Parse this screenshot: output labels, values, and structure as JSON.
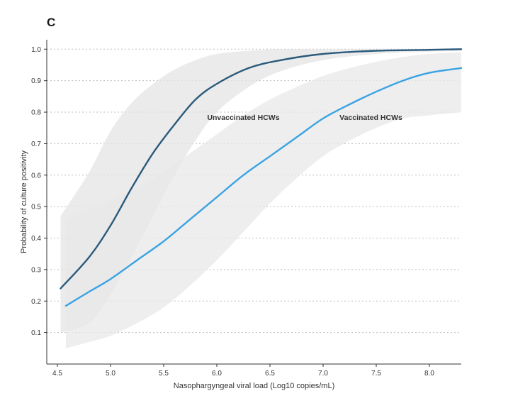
{
  "panel_label": "C",
  "chart_data": {
    "type": "line",
    "title": "",
    "xlabel": "Nasophargyngeal viral load (Log10 copies/mL)",
    "ylabel": "Probability of culture positivity",
    "xlim": [
      4.4,
      8.3
    ],
    "ylim": [
      0.0,
      1.03
    ],
    "x_ticks": [
      4.5,
      5.0,
      5.5,
      6.0,
      6.5,
      7.0,
      7.5,
      8.0
    ],
    "x_tick_labels": [
      "4.5",
      "5.0",
      "5.5",
      "6.0",
      "6.5",
      "7.0",
      "7.5",
      "8.0"
    ],
    "y_ticks": [
      0.1,
      0.2,
      0.3,
      0.4,
      0.5,
      0.6,
      0.7,
      0.8,
      0.9,
      1.0
    ],
    "y_tick_labels": [
      "0.1",
      "0.2",
      "0.3",
      "0.4",
      "0.5",
      "0.6",
      "0.7",
      "0.8",
      "0.9",
      "1.0"
    ],
    "grid": "horizontal-dotted",
    "series": [
      {
        "name": "Unvaccinated HCWs",
        "color": "#2a5a7c",
        "band_color": "#e4e4e4",
        "label_at": [
          6.25,
          0.775
        ],
        "x": [
          4.53,
          4.8,
          5.0,
          5.2,
          5.4,
          5.6,
          5.8,
          6.0,
          6.3,
          6.6,
          7.0,
          7.5,
          8.0,
          8.3
        ],
        "y": [
          0.24,
          0.34,
          0.44,
          0.56,
          0.67,
          0.76,
          0.84,
          0.89,
          0.94,
          0.965,
          0.985,
          0.995,
          0.998,
          1.0
        ],
        "lower": [
          0.1,
          0.13,
          0.22,
          0.34,
          0.47,
          0.6,
          0.71,
          0.8,
          0.88,
          0.93,
          0.965,
          0.985,
          0.992,
          0.995
        ],
        "upper": [
          0.47,
          0.61,
          0.74,
          0.83,
          0.89,
          0.935,
          0.965,
          0.985,
          0.995,
          1.0,
          1.0,
          1.0,
          1.0,
          1.0
        ]
      },
      {
        "name": "Vaccinated HCWs",
        "color": "#3aa3e3",
        "band_color": "#e8e8e8",
        "label_at": [
          7.45,
          0.775
        ],
        "x": [
          4.58,
          4.8,
          5.0,
          5.25,
          5.5,
          5.75,
          6.0,
          6.25,
          6.5,
          6.75,
          7.0,
          7.25,
          7.5,
          7.75,
          8.0,
          8.3
        ],
        "y": [
          0.185,
          0.23,
          0.27,
          0.33,
          0.39,
          0.46,
          0.53,
          0.6,
          0.66,
          0.72,
          0.78,
          0.825,
          0.865,
          0.9,
          0.925,
          0.94
        ],
        "lower": [
          0.05,
          0.07,
          0.09,
          0.13,
          0.18,
          0.25,
          0.33,
          0.42,
          0.51,
          0.59,
          0.66,
          0.71,
          0.75,
          0.78,
          0.79,
          0.8
        ],
        "upper": [
          0.46,
          0.49,
          0.52,
          0.56,
          0.61,
          0.67,
          0.73,
          0.79,
          0.84,
          0.88,
          0.915,
          0.94,
          0.96,
          0.975,
          0.985,
          0.99
        ]
      }
    ]
  }
}
